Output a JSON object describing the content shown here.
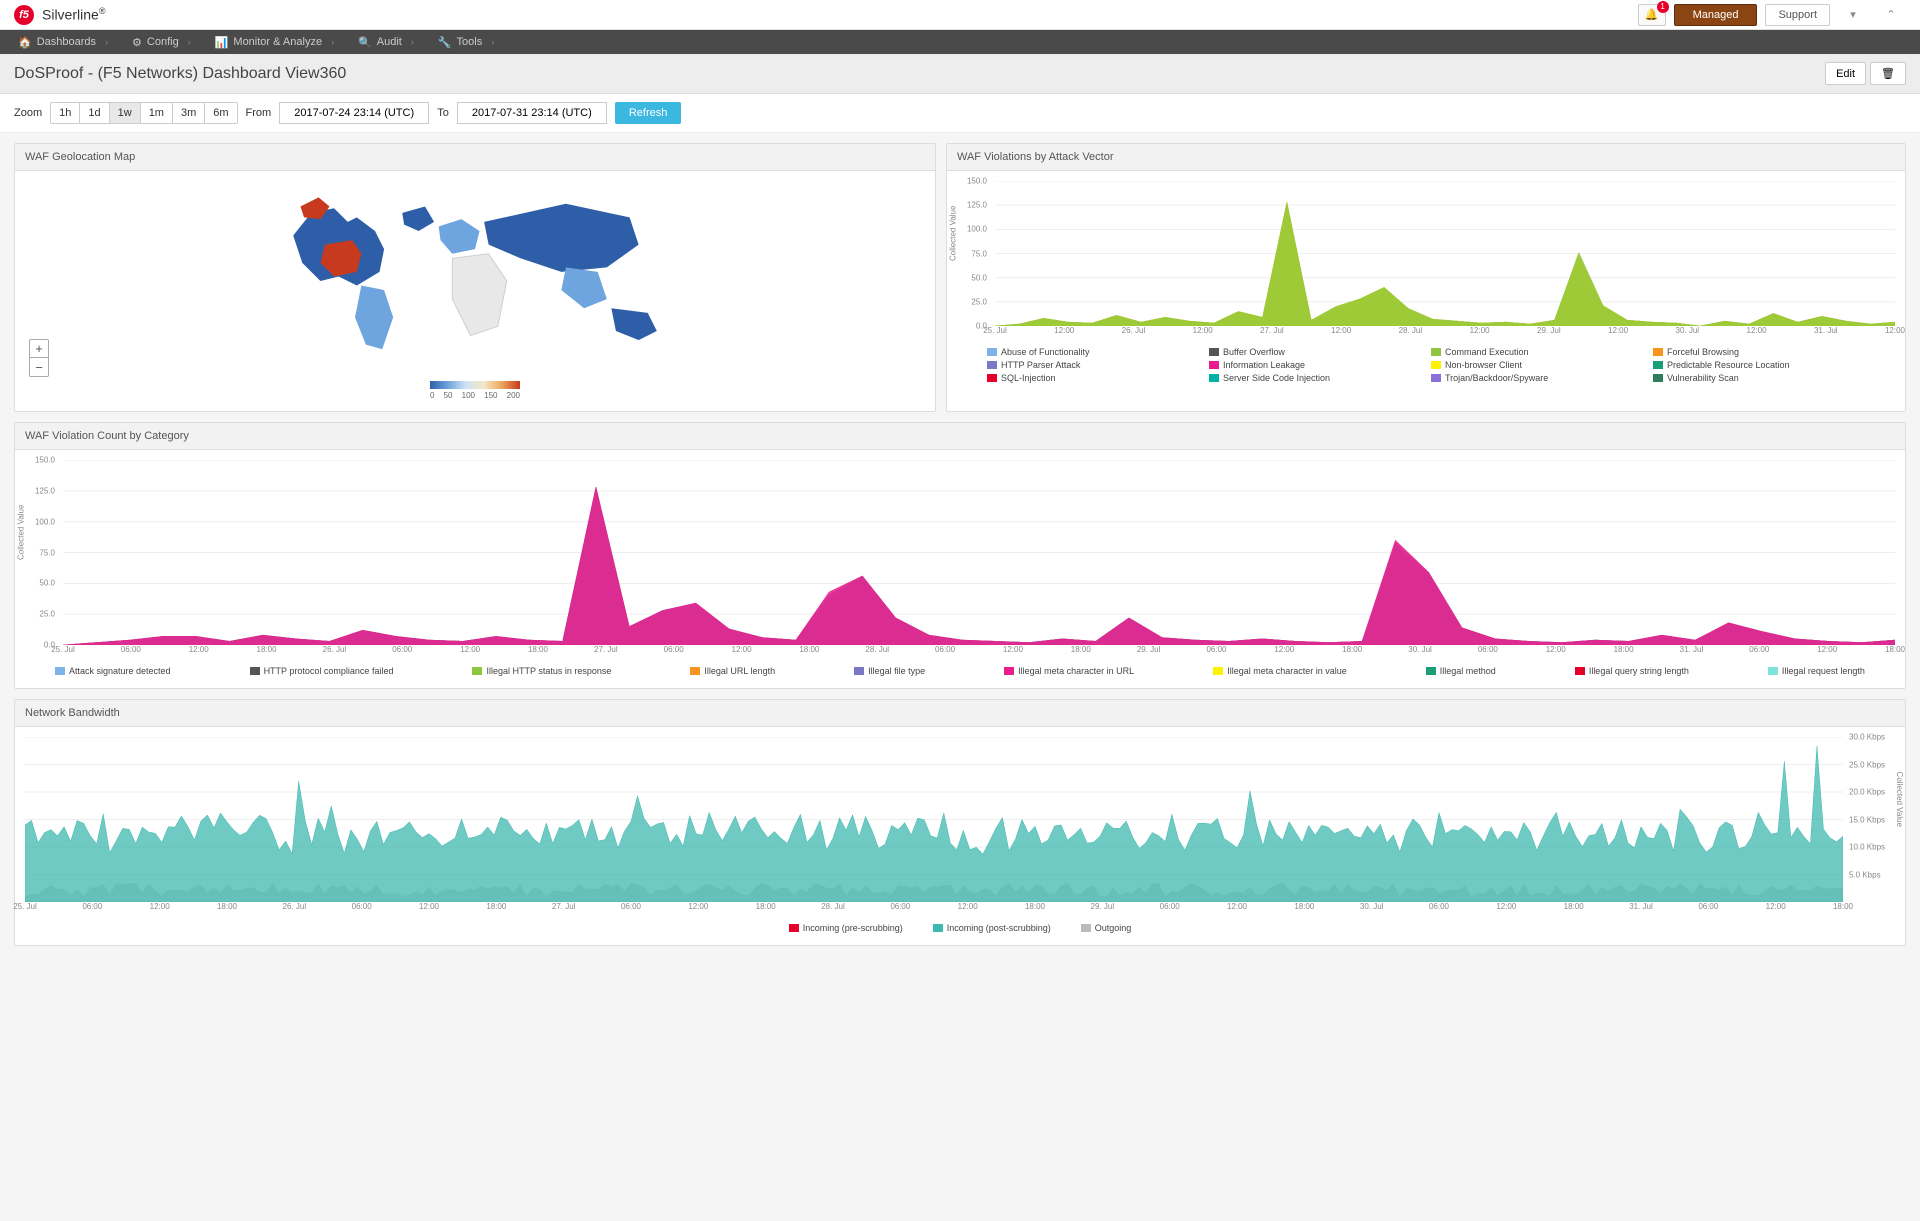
{
  "brand": {
    "logo_text": "f5",
    "name": "Silverline",
    "mark": "®"
  },
  "header": {
    "notification_count": "1",
    "managed_label": "Managed",
    "support_label": "Support"
  },
  "nav": {
    "items": [
      {
        "icon": "🏠",
        "label": "Dashboards"
      },
      {
        "icon": "⚙",
        "label": "Config"
      },
      {
        "icon": "📊",
        "label": "Monitor & Analyze"
      },
      {
        "icon": "🔍",
        "label": "Audit"
      },
      {
        "icon": "🔧",
        "label": "Tools"
      }
    ]
  },
  "page_title": "DoSProof - (F5 Networks) Dashboard View360",
  "actions": {
    "edit": "Edit",
    "delete_title": "Delete"
  },
  "controls": {
    "zoom_label": "Zoom",
    "zoom_options": [
      "1h",
      "1d",
      "1w",
      "1m",
      "3m",
      "6m"
    ],
    "zoom_active_index": 2,
    "from_label": "From",
    "to_label": "To",
    "from_value": "2017-07-24 23:14 (UTC)",
    "to_value": "2017-07-31 23:14 (UTC)",
    "refresh_label": "Refresh"
  },
  "map_panel": {
    "title": "WAF Geolocation Map",
    "legend_ticks": [
      "0",
      "50",
      "100",
      "150",
      "200"
    ]
  },
  "violations_vector": {
    "title": "WAF Violations by Attack Vector",
    "y_label": "Collected Value",
    "ylim": [
      0,
      150
    ],
    "y_ticks": [
      0,
      25,
      50,
      75,
      100,
      125,
      150
    ],
    "x_labels": [
      "25. Jul",
      "12:00",
      "26. Jul",
      "12:00",
      "27. Jul",
      "12:00",
      "28. Jul",
      "12:00",
      "29. Jul",
      "12:00",
      "30. Jul",
      "12:00",
      "31. Jul",
      "12:00"
    ],
    "series_colors": {
      "abuse": "#7eb3e8",
      "buffer": "#555555",
      "cmd": "#8ec641",
      "forceful": "#f7941d",
      "parser": "#7c76c7",
      "leakage": "#e91e8c",
      "nonbrowser": "#fff200",
      "predictable": "#1b9e77",
      "sql": "#e4002b",
      "ssci": "#00b3a4",
      "trojan": "#8b6fd8",
      "vuln": "#2e7d5b"
    },
    "legend": [
      {
        "label": "Abuse of Functionality",
        "color": "#7eb3e8"
      },
      {
        "label": "Buffer Overflow",
        "color": "#555555"
      },
      {
        "label": "Command Execution",
        "color": "#8ec641"
      },
      {
        "label": "Forceful Browsing",
        "color": "#f7941d"
      },
      {
        "label": "HTTP Parser Attack",
        "color": "#7c76c7"
      },
      {
        "label": "Information Leakage",
        "color": "#e91e8c"
      },
      {
        "label": "Non-browser Client",
        "color": "#fff200"
      },
      {
        "label": "Predictable Resource Location",
        "color": "#1b9e77"
      },
      {
        "label": "SQL-Injection",
        "color": "#e4002b"
      },
      {
        "label": "Server Side Code Injection",
        "color": "#00b3a4"
      },
      {
        "label": "Trojan/Backdoor/Spyware",
        "color": "#8b6fd8"
      },
      {
        "label": "Vulnerability Scan",
        "color": "#2e7d5b"
      }
    ],
    "stacks": [
      [
        0
      ],
      [
        2
      ],
      [
        6,
        2
      ],
      [
        4
      ],
      [
        3
      ],
      [
        8,
        3
      ],
      [
        4
      ],
      [
        6,
        3
      ],
      [
        5
      ],
      [
        3
      ],
      [
        9,
        4,
        2
      ],
      [
        7,
        2
      ],
      [
        120,
        5,
        3
      ],
      [
        6
      ],
      [
        10,
        5,
        3,
        2
      ],
      [
        18,
        6,
        4
      ],
      [
        28,
        8,
        4
      ],
      [
        14,
        4
      ],
      [
        7
      ],
      [
        5
      ],
      [
        3
      ],
      [
        4
      ],
      [
        2
      ],
      [
        6
      ],
      [
        8,
        60,
        4,
        2,
        2
      ],
      [
        12,
        6,
        3
      ],
      [
        6
      ],
      [
        4
      ],
      [
        3
      ],
      [
        0
      ],
      [
        5
      ],
      [
        2
      ],
      [
        10,
        3
      ],
      [
        4
      ],
      [
        8,
        2
      ],
      [
        5
      ],
      [
        2
      ],
      [
        4
      ]
    ],
    "stack_colors": [
      "#7c76c7",
      "#7eb3e8",
      "#f7941d",
      "#fff200",
      "#8ec641",
      "#e4002b",
      "#00b3a4",
      "#2e7d5b"
    ]
  },
  "violations_category": {
    "title": "WAF Violation Count by Category",
    "y_label": "Collected Value",
    "ylim": [
      0,
      150
    ],
    "y_ticks": [
      0,
      25,
      50,
      75,
      100,
      125,
      150
    ],
    "x_labels": [
      "25. Jul",
      "06:00",
      "12:00",
      "18:00",
      "26. Jul",
      "06:00",
      "12:00",
      "18:00",
      "27. Jul",
      "06:00",
      "12:00",
      "18:00",
      "28. Jul",
      "06:00",
      "12:00",
      "18:00",
      "29. Jul",
      "06:00",
      "12:00",
      "18:00",
      "30. Jul",
      "06:00",
      "12:00",
      "18:00",
      "31. Jul",
      "06:00",
      "12:00",
      "18:00"
    ],
    "legend": [
      {
        "label": "Attack signature detected",
        "color": "#7eb3e8"
      },
      {
        "label": "HTTP protocol compliance failed",
        "color": "#555555"
      },
      {
        "label": "Illegal HTTP status in response",
        "color": "#8ec641"
      },
      {
        "label": "Illegal URL length",
        "color": "#f7941d"
      },
      {
        "label": "Illegal file type",
        "color": "#7c76c7"
      },
      {
        "label": "Illegal meta character in URL",
        "color": "#e91e8c"
      },
      {
        "label": "Illegal meta character in value",
        "color": "#fff200"
      },
      {
        "label": "Illegal method",
        "color": "#1b9e77"
      },
      {
        "label": "Illegal query string length",
        "color": "#e4002b"
      },
      {
        "label": "Illegal request length",
        "color": "#7fe5dc"
      }
    ],
    "stacks": [
      [
        0
      ],
      [
        2
      ],
      [
        3,
        1
      ],
      [
        5,
        2
      ],
      [
        4,
        2,
        1
      ],
      [
        3
      ],
      [
        6,
        2
      ],
      [
        4,
        1
      ],
      [
        3
      ],
      [
        8,
        3,
        1
      ],
      [
        5,
        2
      ],
      [
        4
      ],
      [
        3
      ],
      [
        5,
        2
      ],
      [
        4
      ],
      [
        3
      ],
      [
        125,
        3
      ],
      [
        10,
        3,
        2
      ],
      [
        18,
        5,
        3,
        2
      ],
      [
        22,
        6,
        4,
        2
      ],
      [
        10,
        3
      ],
      [
        6
      ],
      [
        4
      ],
      [
        20,
        12,
        6,
        3,
        2
      ],
      [
        42,
        8,
        4,
        2
      ],
      [
        15,
        5,
        2
      ],
      [
        8
      ],
      [
        4
      ],
      [
        3
      ],
      [
        2
      ],
      [
        5
      ],
      [
        3
      ],
      [
        18,
        4
      ],
      [
        6
      ],
      [
        4
      ],
      [
        3
      ],
      [
        5
      ],
      [
        3
      ],
      [
        2
      ],
      [
        3
      ],
      [
        65,
        10,
        5,
        3,
        2
      ],
      [
        38,
        12,
        6,
        3
      ],
      [
        10,
        4
      ],
      [
        5
      ],
      [
        3
      ],
      [
        2
      ],
      [
        4
      ],
      [
        3
      ],
      [
        6,
        2
      ],
      [
        4
      ],
      [
        12,
        4,
        2
      ],
      [
        8,
        3
      ],
      [
        5
      ],
      [
        3
      ],
      [
        2
      ],
      [
        4
      ]
    ],
    "stack_colors": [
      "#555555",
      "#7eb3e8",
      "#f7941d",
      "#7c76c7",
      "#e91e8c",
      "#8ec641",
      "#fff200",
      "#e4002b",
      "#7fe5dc"
    ]
  },
  "bandwidth": {
    "title": "Network Bandwidth",
    "y_label": "Collected Value",
    "y_ticks_right": [
      "5.0 Kbps",
      "10.0 Kbps",
      "15.0 Kbps",
      "20.0 Kbps",
      "25.0 Kbps",
      "30.0 Kbps"
    ],
    "x_labels": [
      "25. Jul",
      "06:00",
      "12:00",
      "18:00",
      "26. Jul",
      "06:00",
      "12:00",
      "18:00",
      "27. Jul",
      "06:00",
      "12:00",
      "18:00",
      "28. Jul",
      "06:00",
      "12:00",
      "18:00",
      "29. Jul",
      "06:00",
      "12:00",
      "18:00",
      "30. Jul",
      "06:00",
      "12:00",
      "18:00",
      "31. Jul",
      "06:00",
      "12:00",
      "18:00"
    ],
    "legend": [
      {
        "label": "Incoming (pre-scrubbing)",
        "color": "#e4002b"
      },
      {
        "label": "Incoming (post-scrubbing)",
        "color": "#3fb8af"
      },
      {
        "label": "Outgoing",
        "color": "#bbbbbb"
      }
    ],
    "series_post_color": "#3fb8af",
    "series_out_color": "#bbbbbb",
    "ylim": [
      0,
      30
    ]
  }
}
